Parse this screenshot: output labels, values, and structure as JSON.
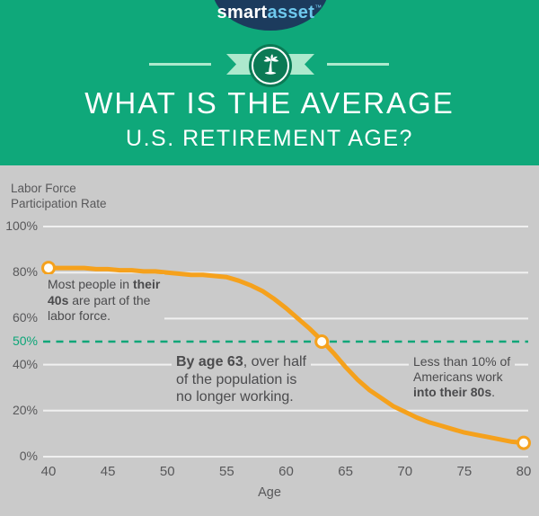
{
  "brand": {
    "name_part1": "smart",
    "name_part2": "asset",
    "trademark": "™"
  },
  "header": {
    "title_line1": "WHAT IS THE AVERAGE",
    "title_line2": "U.S. RETIREMENT AGE?"
  },
  "colors": {
    "header_bg": "#0FA87A",
    "logo_bg": "#1C3B5D",
    "logo_asset": "#6FC9EE",
    "ribbon": "#ADE9CD",
    "badge": "#0B7A55",
    "chart_bg": "#CACACA",
    "gridline": "#F0F0F0",
    "line": "#F5A11C",
    "reference": "#0CA678",
    "text_dark": "#4B4B4D",
    "tick_text": "#58585A"
  },
  "chart_data": {
    "type": "line",
    "title": "",
    "ylabel": "Labor Force Participation Rate",
    "ylabel_lines": [
      "Labor Force",
      "Participation Rate"
    ],
    "xlabel": "Age",
    "xlim": [
      40,
      80
    ],
    "ylim": [
      0,
      100
    ],
    "grid": true,
    "x_ticks": [
      "40",
      "45",
      "50",
      "55",
      "60",
      "65",
      "70",
      "75",
      "80"
    ],
    "x_tick_values": [
      40,
      45,
      50,
      55,
      60,
      65,
      70,
      75,
      80
    ],
    "y_ticks": [
      {
        "value": 100,
        "label": "100%"
      },
      {
        "value": 80,
        "label": "80%"
      },
      {
        "value": 60,
        "label": "60%"
      },
      {
        "value": 40,
        "label": "40%"
      },
      {
        "value": 20,
        "label": "20%"
      },
      {
        "value": 0,
        "label": "0%"
      }
    ],
    "reference_line": {
      "value": 50,
      "label": "50%",
      "style": "dashed"
    },
    "x": [
      40,
      41,
      42,
      43,
      44,
      45,
      46,
      47,
      48,
      49,
      50,
      51,
      52,
      53,
      54,
      55,
      56,
      57,
      58,
      59,
      60,
      61,
      62,
      63,
      64,
      65,
      66,
      67,
      68,
      69,
      70,
      71,
      72,
      73,
      74,
      75,
      76,
      77,
      78,
      79,
      80
    ],
    "values": [
      82,
      82,
      82,
      82,
      81.5,
      81.5,
      81,
      81,
      80.5,
      80.5,
      80,
      79.5,
      79,
      79,
      78.5,
      78,
      76.5,
      74.5,
      72,
      68.5,
      64.5,
      60,
      55.5,
      50.5,
      45,
      39,
      33.5,
      29,
      25.5,
      22,
      19.5,
      17,
      15,
      13.5,
      12,
      10.5,
      9.5,
      8.5,
      7.5,
      6.5,
      6
    ],
    "markers": [
      {
        "age": 40,
        "value": 82
      },
      {
        "age": 63,
        "value": 50
      },
      {
        "age": 80,
        "value": 6
      }
    ],
    "annotations": [
      {
        "name": "forties",
        "lines": [
          [
            {
              "t": "Most people in "
            },
            {
              "t": "their",
              "b": true
            }
          ],
          [
            {
              "t": "40s",
              "b": true
            },
            {
              "t": " are part of the"
            }
          ],
          [
            {
              "t": "labor force."
            }
          ]
        ]
      },
      {
        "name": "age-63",
        "lines": [
          [
            {
              "t": "By age 63",
              "b": true
            },
            {
              "t": ", over half"
            }
          ],
          [
            {
              "t": "of the population is"
            }
          ],
          [
            {
              "t": "no longer working."
            }
          ]
        ]
      },
      {
        "name": "eighties",
        "lines": [
          [
            {
              "t": "Less than 10% of"
            }
          ],
          [
            {
              "t": "Americans work"
            }
          ],
          [
            {
              "t": "into their 80s",
              "b": true
            },
            {
              "t": "."
            }
          ]
        ]
      }
    ]
  }
}
